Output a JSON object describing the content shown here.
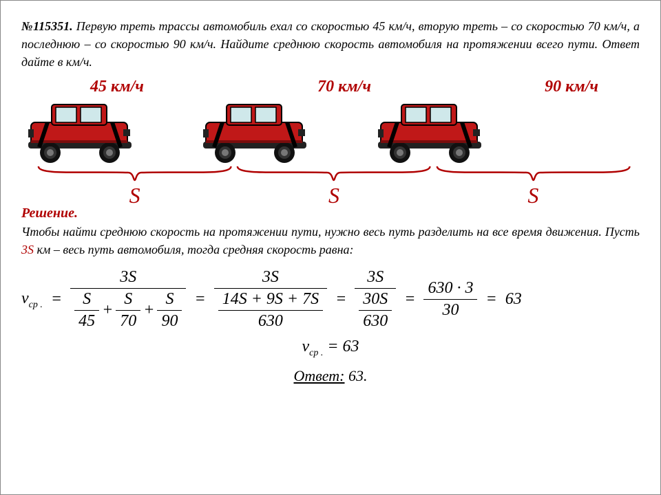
{
  "problem": {
    "number": "№115351.",
    "text": "Первую треть трассы автомобиль ехал со скоростью 45 км/ч, вторую треть – со скоростью 70 км/ч, а последнюю – со скоростью 90 км/ч. Найдите среднюю скорость автомобиля на протяжении всего пути. Ответ дайте в км/ч."
  },
  "diagram": {
    "speeds": [
      "45 км/ч",
      "70 км/ч",
      "90 км/ч"
    ],
    "segment_label": "S",
    "car_color": "#c01818",
    "car_stroke": "#000000",
    "brace_color": "#b00000"
  },
  "solution": {
    "title": "Решение.",
    "text_pre": "Чтобы найти среднюю скорость на протяжении пути, нужно весь путь разделить на все время движения. Пусть ",
    "highlight": "3S",
    "text_post": " км – весь путь автомобиля, тогда средняя скорость равна:"
  },
  "formula": {
    "v_label": "v",
    "v_sub": "ср .",
    "step1": {
      "num": "3S",
      "den_fracs": [
        [
          "S",
          "45"
        ],
        [
          "S",
          "70"
        ],
        [
          "S",
          "90"
        ]
      ]
    },
    "step2": {
      "num": "3S",
      "den": "14S + 9S + 7S",
      "den2": "630"
    },
    "step3": {
      "num": "3S",
      "den_top": "30S",
      "den_bot": "630"
    },
    "step4": {
      "num": "630 · 3",
      "den": "30"
    },
    "result": "63",
    "final": "= 63"
  },
  "answer": {
    "label": "Ответ:",
    "value": "63."
  },
  "colors": {
    "highlight": "#b00000",
    "text": "#000000"
  }
}
